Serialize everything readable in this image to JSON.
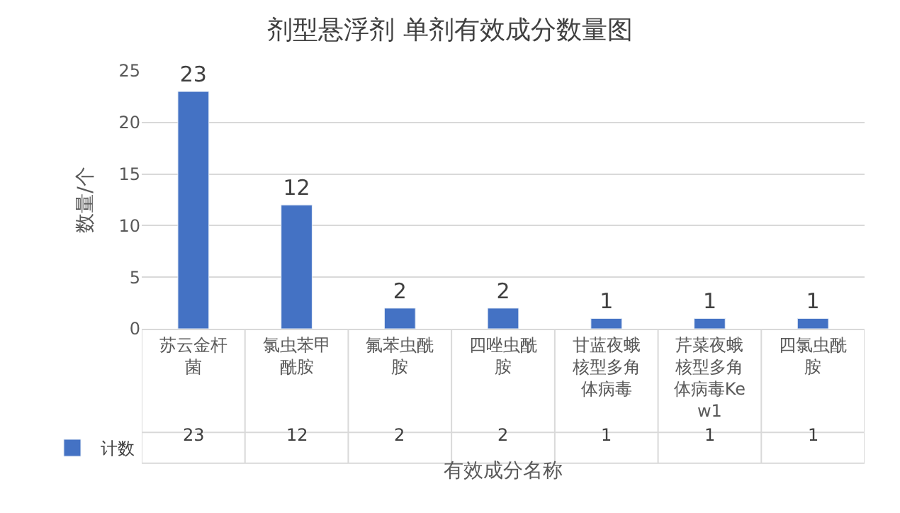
{
  "chart_data": {
    "type": "bar",
    "title": "剂型悬浮剂 单剂有效成分数量图",
    "xlabel": "有效成分名称",
    "ylabel": "数量/个",
    "categories": [
      "苏云金杆菌",
      "氯虫苯甲酰胺",
      "氟苯虫酰胺",
      "四唑虫酰胺",
      "甘蓝夜蛾核型多角体病毒",
      "芹菜夜蛾核型多角体病毒Kew1",
      "四氯虫酰胺"
    ],
    "series": [
      {
        "name": "计数",
        "color": "#4472c4",
        "values": [
          23,
          12,
          2,
          2,
          1,
          1,
          1
        ],
        "value_labels": [
          "23",
          "12",
          "2",
          "2",
          "1",
          "1",
          "1"
        ]
      }
    ],
    "ylim": [
      0,
      25
    ],
    "yticks": [
      0,
      5,
      10,
      15,
      20,
      25
    ],
    "grid": "y",
    "data_labels": true,
    "legend": "bottom left"
  }
}
